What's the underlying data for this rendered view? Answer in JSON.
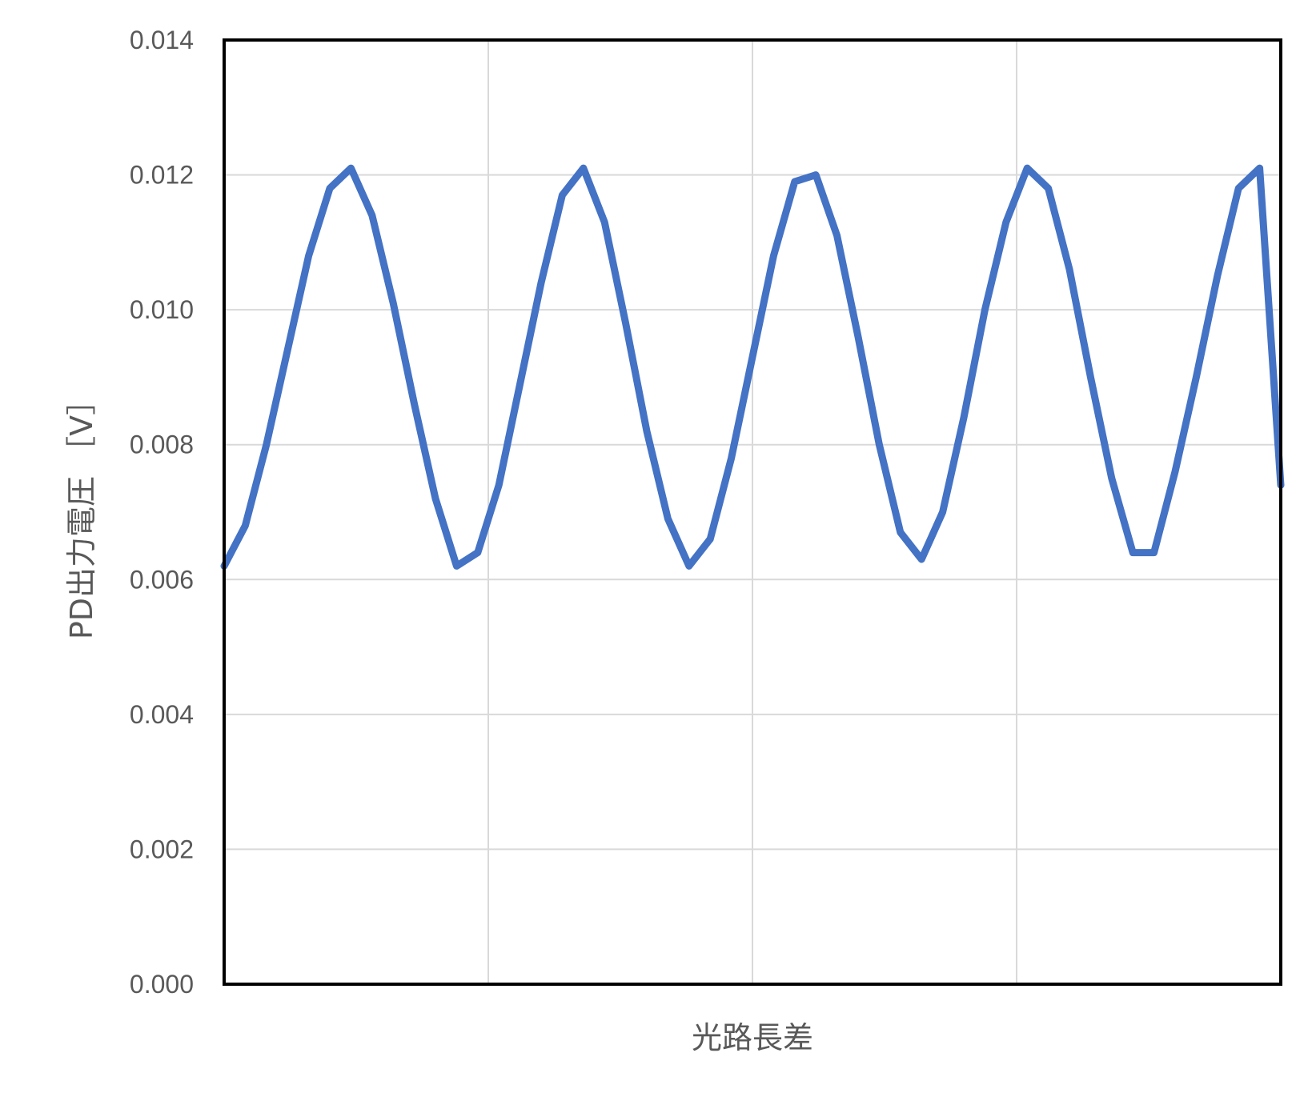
{
  "chart_data": {
    "type": "line",
    "title": "",
    "xlabel": "光路長差",
    "ylabel": "PD出力電圧 ［V］",
    "xlim": [
      0,
      1
    ],
    "ylim": [
      0,
      0.014
    ],
    "y_ticks": [
      "0.000",
      "0.002",
      "0.004",
      "0.006",
      "0.008",
      "0.010",
      "0.012",
      "0.014"
    ],
    "x_ticks": [],
    "grid": true,
    "legend": "none",
    "series": [
      {
        "color": "#4472c4",
        "x": [
          0.0,
          0.02,
          0.04,
          0.06,
          0.08,
          0.1,
          0.12,
          0.14,
          0.16,
          0.18,
          0.2,
          0.22,
          0.24,
          0.26,
          0.28,
          0.3,
          0.32,
          0.34,
          0.36,
          0.38,
          0.4,
          0.42,
          0.44,
          0.46,
          0.48,
          0.5,
          0.52,
          0.54,
          0.56,
          0.58,
          0.6,
          0.62,
          0.64,
          0.66,
          0.68,
          0.7,
          0.72,
          0.74,
          0.76,
          0.78,
          0.8,
          0.82,
          0.84,
          0.86,
          0.88,
          0.9,
          0.92,
          0.94,
          0.96,
          0.98,
          1.0
        ],
        "y": [
          0.0062,
          0.0068,
          0.008,
          0.0094,
          0.0108,
          0.0118,
          0.0121,
          0.0114,
          0.0101,
          0.0086,
          0.0072,
          0.0062,
          0.0064,
          0.0074,
          0.0089,
          0.0104,
          0.0117,
          0.0121,
          0.0113,
          0.0098,
          0.0082,
          0.0069,
          0.0062,
          0.0066,
          0.0078,
          0.0093,
          0.0108,
          0.0119,
          0.012,
          0.0111,
          0.0096,
          0.008,
          0.0067,
          0.0063,
          0.007,
          0.0084,
          0.01,
          0.0113,
          0.0121,
          0.0118,
          0.0106,
          0.009,
          0.0075,
          0.0064,
          0.0064,
          0.0076,
          0.009,
          0.0105,
          0.0118,
          0.0121,
          0.0074
        ]
      }
    ]
  }
}
